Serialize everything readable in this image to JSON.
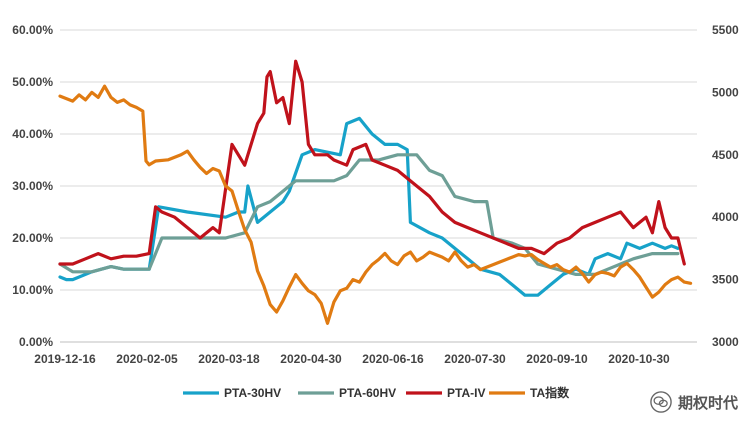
{
  "chart_data": {
    "type": "line",
    "title": "",
    "x": [
      "2019-12-16",
      "2020-02-05",
      "2020-03-18",
      "2020-04-30",
      "2020-06-16",
      "2020-07-30",
      "2020-09-10",
      "2020-10-30"
    ],
    "left_axis": {
      "min": 0,
      "max": 0.6,
      "ticks": [
        "0.00%",
        "10.00%",
        "20.00%",
        "30.00%",
        "40.00%",
        "50.00%",
        "60.00%"
      ]
    },
    "right_axis": {
      "min": 3000,
      "max": 5500,
      "ticks": [
        "3000",
        "3500",
        "4000",
        "4500",
        "5000",
        "5500"
      ]
    },
    "series": [
      {
        "name": "PTA-30HV",
        "color": "#17a2c9",
        "axis": "left",
        "points": [
          [
            0,
            0.125
          ],
          [
            0.01,
            0.12
          ],
          [
            0.02,
            0.12
          ],
          [
            0.05,
            0.135
          ],
          [
            0.08,
            0.145
          ],
          [
            0.1,
            0.14
          ],
          [
            0.12,
            0.14
          ],
          [
            0.14,
            0.14
          ],
          [
            0.155,
            0.26
          ],
          [
            0.2,
            0.25
          ],
          [
            0.26,
            0.24
          ],
          [
            0.28,
            0.25
          ],
          [
            0.29,
            0.25
          ],
          [
            0.295,
            0.3
          ],
          [
            0.31,
            0.23
          ],
          [
            0.33,
            0.25
          ],
          [
            0.35,
            0.27
          ],
          [
            0.36,
            0.29
          ],
          [
            0.38,
            0.36
          ],
          [
            0.4,
            0.37
          ],
          [
            0.42,
            0.365
          ],
          [
            0.44,
            0.36
          ],
          [
            0.45,
            0.42
          ],
          [
            0.47,
            0.43
          ],
          [
            0.49,
            0.4
          ],
          [
            0.51,
            0.38
          ],
          [
            0.53,
            0.38
          ],
          [
            0.545,
            0.37
          ],
          [
            0.55,
            0.23
          ],
          [
            0.58,
            0.21
          ],
          [
            0.6,
            0.2
          ],
          [
            0.62,
            0.18
          ],
          [
            0.64,
            0.16
          ],
          [
            0.66,
            0.14
          ],
          [
            0.69,
            0.13
          ],
          [
            0.71,
            0.11
          ],
          [
            0.73,
            0.09
          ],
          [
            0.75,
            0.09
          ],
          [
            0.77,
            0.11
          ],
          [
            0.79,
            0.13
          ],
          [
            0.81,
            0.14
          ],
          [
            0.83,
            0.13
          ],
          [
            0.84,
            0.16
          ],
          [
            0.86,
            0.17
          ],
          [
            0.88,
            0.16
          ],
          [
            0.89,
            0.19
          ],
          [
            0.91,
            0.18
          ],
          [
            0.93,
            0.19
          ],
          [
            0.95,
            0.18
          ],
          [
            0.96,
            0.185
          ],
          [
            0.97,
            0.18
          ]
        ]
      },
      {
        "name": "PTA-60HV",
        "color": "#6e9f96",
        "axis": "left",
        "points": [
          [
            0,
            0.15
          ],
          [
            0.02,
            0.135
          ],
          [
            0.05,
            0.135
          ],
          [
            0.08,
            0.145
          ],
          [
            0.1,
            0.14
          ],
          [
            0.14,
            0.14
          ],
          [
            0.16,
            0.2
          ],
          [
            0.2,
            0.2
          ],
          [
            0.26,
            0.2
          ],
          [
            0.29,
            0.21
          ],
          [
            0.31,
            0.26
          ],
          [
            0.33,
            0.27
          ],
          [
            0.35,
            0.29
          ],
          [
            0.37,
            0.31
          ],
          [
            0.4,
            0.31
          ],
          [
            0.43,
            0.31
          ],
          [
            0.45,
            0.32
          ],
          [
            0.47,
            0.35
          ],
          [
            0.5,
            0.35
          ],
          [
            0.53,
            0.36
          ],
          [
            0.56,
            0.36
          ],
          [
            0.58,
            0.33
          ],
          [
            0.6,
            0.32
          ],
          [
            0.62,
            0.28
          ],
          [
            0.65,
            0.27
          ],
          [
            0.67,
            0.27
          ],
          [
            0.68,
            0.2
          ],
          [
            0.71,
            0.19
          ],
          [
            0.73,
            0.18
          ],
          [
            0.75,
            0.15
          ],
          [
            0.78,
            0.14
          ],
          [
            0.81,
            0.13
          ],
          [
            0.84,
            0.13
          ],
          [
            0.86,
            0.14
          ],
          [
            0.88,
            0.15
          ],
          [
            0.9,
            0.16
          ],
          [
            0.93,
            0.17
          ],
          [
            0.95,
            0.17
          ],
          [
            0.97,
            0.17
          ]
        ]
      },
      {
        "name": "PTA-IV",
        "color": "#c0121b",
        "axis": "left",
        "points": [
          [
            0,
            0.15
          ],
          [
            0.02,
            0.15
          ],
          [
            0.04,
            0.16
          ],
          [
            0.06,
            0.17
          ],
          [
            0.08,
            0.16
          ],
          [
            0.1,
            0.165
          ],
          [
            0.12,
            0.165
          ],
          [
            0.14,
            0.17
          ],
          [
            0.15,
            0.26
          ],
          [
            0.16,
            0.25
          ],
          [
            0.18,
            0.24
          ],
          [
            0.2,
            0.22
          ],
          [
            0.22,
            0.2
          ],
          [
            0.24,
            0.22
          ],
          [
            0.25,
            0.21
          ],
          [
            0.27,
            0.38
          ],
          [
            0.29,
            0.34
          ],
          [
            0.31,
            0.42
          ],
          [
            0.32,
            0.44
          ],
          [
            0.325,
            0.51
          ],
          [
            0.33,
            0.52
          ],
          [
            0.34,
            0.46
          ],
          [
            0.35,
            0.47
          ],
          [
            0.36,
            0.42
          ],
          [
            0.37,
            0.54
          ],
          [
            0.38,
            0.5
          ],
          [
            0.39,
            0.38
          ],
          [
            0.4,
            0.36
          ],
          [
            0.42,
            0.36
          ],
          [
            0.43,
            0.35
          ],
          [
            0.45,
            0.34
          ],
          [
            0.46,
            0.37
          ],
          [
            0.48,
            0.38
          ],
          [
            0.49,
            0.35
          ],
          [
            0.51,
            0.34
          ],
          [
            0.53,
            0.33
          ],
          [
            0.56,
            0.3
          ],
          [
            0.58,
            0.28
          ],
          [
            0.6,
            0.25
          ],
          [
            0.62,
            0.23
          ],
          [
            0.64,
            0.22
          ],
          [
            0.66,
            0.21
          ],
          [
            0.68,
            0.2
          ],
          [
            0.7,
            0.19
          ],
          [
            0.72,
            0.18
          ],
          [
            0.74,
            0.18
          ],
          [
            0.76,
            0.17
          ],
          [
            0.78,
            0.19
          ],
          [
            0.8,
            0.2
          ],
          [
            0.82,
            0.22
          ],
          [
            0.84,
            0.23
          ],
          [
            0.86,
            0.24
          ],
          [
            0.88,
            0.25
          ],
          [
            0.9,
            0.22
          ],
          [
            0.92,
            0.24
          ],
          [
            0.93,
            0.21
          ],
          [
            0.94,
            0.27
          ],
          [
            0.95,
            0.22
          ],
          [
            0.96,
            0.2
          ],
          [
            0.97,
            0.2
          ],
          [
            0.98,
            0.15
          ]
        ]
      },
      {
        "name": "TA指数",
        "color": "#e07b12",
        "axis": "right",
        "points": [
          [
            0,
            4970
          ],
          [
            0.02,
            4930
          ],
          [
            0.03,
            4980
          ],
          [
            0.04,
            4940
          ],
          [
            0.05,
            5000
          ],
          [
            0.06,
            4960
          ],
          [
            0.07,
            5050
          ],
          [
            0.08,
            4960
          ],
          [
            0.09,
            4920
          ],
          [
            0.1,
            4940
          ],
          [
            0.11,
            4900
          ],
          [
            0.12,
            4880
          ],
          [
            0.13,
            4850
          ],
          [
            0.135,
            4450
          ],
          [
            0.14,
            4420
          ],
          [
            0.15,
            4450
          ],
          [
            0.17,
            4460
          ],
          [
            0.19,
            4500
          ],
          [
            0.2,
            4530
          ],
          [
            0.21,
            4460
          ],
          [
            0.22,
            4400
          ],
          [
            0.23,
            4350
          ],
          [
            0.24,
            4390
          ],
          [
            0.25,
            4370
          ],
          [
            0.26,
            4250
          ],
          [
            0.27,
            4210
          ],
          [
            0.28,
            4050
          ],
          [
            0.29,
            3900
          ],
          [
            0.3,
            3800
          ],
          [
            0.31,
            3570
          ],
          [
            0.32,
            3450
          ],
          [
            0.33,
            3300
          ],
          [
            0.34,
            3240
          ],
          [
            0.35,
            3330
          ],
          [
            0.36,
            3440
          ],
          [
            0.37,
            3540
          ],
          [
            0.38,
            3470
          ],
          [
            0.39,
            3410
          ],
          [
            0.4,
            3380
          ],
          [
            0.41,
            3310
          ],
          [
            0.42,
            3150
          ],
          [
            0.43,
            3320
          ],
          [
            0.44,
            3410
          ],
          [
            0.45,
            3430
          ],
          [
            0.46,
            3500
          ],
          [
            0.47,
            3480
          ],
          [
            0.48,
            3560
          ],
          [
            0.49,
            3620
          ],
          [
            0.5,
            3660
          ],
          [
            0.51,
            3710
          ],
          [
            0.52,
            3650
          ],
          [
            0.53,
            3620
          ],
          [
            0.54,
            3690
          ],
          [
            0.55,
            3720
          ],
          [
            0.56,
            3650
          ],
          [
            0.57,
            3680
          ],
          [
            0.58,
            3720
          ],
          [
            0.59,
            3700
          ],
          [
            0.6,
            3680
          ],
          [
            0.61,
            3650
          ],
          [
            0.62,
            3720
          ],
          [
            0.63,
            3650
          ],
          [
            0.64,
            3600
          ],
          [
            0.65,
            3620
          ],
          [
            0.66,
            3580
          ],
          [
            0.67,
            3600
          ],
          [
            0.68,
            3620
          ],
          [
            0.69,
            3640
          ],
          [
            0.7,
            3660
          ],
          [
            0.71,
            3680
          ],
          [
            0.72,
            3700
          ],
          [
            0.73,
            3690
          ],
          [
            0.74,
            3700
          ],
          [
            0.75,
            3660
          ],
          [
            0.76,
            3630
          ],
          [
            0.77,
            3600
          ],
          [
            0.78,
            3620
          ],
          [
            0.79,
            3580
          ],
          [
            0.8,
            3560
          ],
          [
            0.81,
            3600
          ],
          [
            0.82,
            3550
          ],
          [
            0.83,
            3480
          ],
          [
            0.84,
            3540
          ],
          [
            0.85,
            3560
          ],
          [
            0.86,
            3550
          ],
          [
            0.87,
            3530
          ],
          [
            0.88,
            3600
          ],
          [
            0.89,
            3630
          ],
          [
            0.9,
            3580
          ],
          [
            0.91,
            3520
          ],
          [
            0.92,
            3440
          ],
          [
            0.93,
            3360
          ],
          [
            0.94,
            3400
          ],
          [
            0.95,
            3460
          ],
          [
            0.96,
            3500
          ],
          [
            0.97,
            3520
          ],
          [
            0.98,
            3480
          ],
          [
            0.99,
            3470
          ]
        ]
      }
    ],
    "legend": [
      "PTA-30HV",
      "PTA-60HV",
      "PTA-IV",
      "TA指数"
    ],
    "legend_position": "bottom"
  },
  "watermark": {
    "text": "期权时代",
    "icon": "wechat-icon"
  }
}
